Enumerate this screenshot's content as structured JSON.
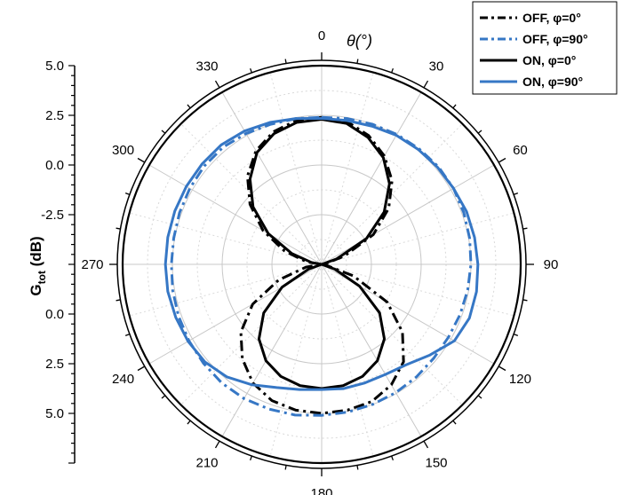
{
  "chart_data": {
    "type": "polar-line",
    "title": "θ(°)",
    "ylabel_main": "G",
    "ylabel_sub": "tot",
    "ylabel_unit": " (dB)",
    "radial_range": [
      -5.0,
      5.0
    ],
    "radial_tick_labels_top": [
      "5.0",
      "2.5",
      "0.0",
      "-2.5"
    ],
    "radial_tick_labels_bottom": [
      "0.0",
      "2.5",
      "5.0"
    ],
    "angular_ticks": [
      {
        "angle": 0,
        "label": "0"
      },
      {
        "angle": 30,
        "label": "30"
      },
      {
        "angle": 60,
        "label": "60"
      },
      {
        "angle": 90,
        "label": "90"
      },
      {
        "angle": 120,
        "label": "120"
      },
      {
        "angle": 150,
        "label": "150"
      },
      {
        "angle": 180,
        "label": "180"
      },
      {
        "angle": 210,
        "label": "210"
      },
      {
        "angle": 240,
        "label": "240"
      },
      {
        "angle": 270,
        "label": "270"
      },
      {
        "angle": 300,
        "label": "300"
      },
      {
        "angle": 330,
        "label": "330"
      }
    ],
    "grid": true,
    "legend_position": "top-right",
    "series": [
      {
        "name": "OFF, φ=0°",
        "color": "#000000",
        "style": "dashdot",
        "theta": [
          0,
          10,
          20,
          30,
          40,
          50,
          60,
          70,
          80,
          90,
          100,
          110,
          120,
          130,
          140,
          150,
          160,
          170,
          180,
          190,
          200,
          210,
          220,
          230,
          240,
          250,
          260,
          270,
          280,
          290,
          300,
          310,
          320,
          330,
          340,
          350,
          360
        ],
        "r": [
          2.4,
          2.3,
          1.9,
          1.3,
          0.5,
          -0.6,
          -2.0,
          -3.8,
          -4.8,
          -5.0,
          -4.8,
          -3.3,
          -1.2,
          0.3,
          1.4,
          2.0,
          2.35,
          2.45,
          2.5,
          2.45,
          2.3,
          1.9,
          1.2,
          0.3,
          -1.0,
          -2.7,
          -4.2,
          -5.0,
          -4.2,
          -3.0,
          -1.6,
          -0.3,
          0.8,
          1.6,
          2.1,
          2.35,
          2.4
        ]
      },
      {
        "name": "OFF, φ=90°",
        "color": "#3677c5",
        "style": "dashdot",
        "theta": [
          0,
          10,
          20,
          30,
          40,
          50,
          60,
          70,
          80,
          90,
          100,
          110,
          120,
          130,
          140,
          150,
          160,
          170,
          180,
          190,
          200,
          210,
          220,
          230,
          240,
          250,
          260,
          270,
          280,
          290,
          300,
          310,
          320,
          330,
          340,
          350,
          360
        ],
        "r": [
          2.4,
          2.45,
          2.5,
          2.55,
          2.6,
          2.65,
          2.65,
          2.6,
          2.55,
          2.5,
          2.45,
          2.4,
          2.35,
          2.35,
          2.4,
          2.45,
          2.5,
          2.55,
          2.6,
          2.7,
          2.75,
          2.8,
          2.8,
          2.75,
          2.7,
          2.65,
          2.6,
          2.55,
          2.55,
          2.6,
          2.65,
          2.7,
          2.7,
          2.6,
          2.5,
          2.45,
          2.4
        ]
      },
      {
        "name": "ON, φ=0°",
        "color": "#000000",
        "style": "solid",
        "theta": [
          0,
          10,
          20,
          30,
          40,
          50,
          60,
          70,
          80,
          90,
          100,
          110,
          120,
          130,
          140,
          150,
          160,
          170,
          180,
          190,
          200,
          210,
          220,
          230,
          240,
          250,
          260,
          270,
          280,
          290,
          300,
          310,
          320,
          330,
          340,
          350,
          360
        ],
        "r": [
          2.3,
          2.2,
          1.8,
          1.2,
          0.3,
          -0.9,
          -2.4,
          -4.2,
          -5.0,
          -5.0,
          -5.0,
          -4.3,
          -2.8,
          -1.2,
          -0.1,
          0.6,
          1.0,
          1.2,
          1.25,
          1.2,
          1.0,
          0.6,
          -0.1,
          -1.2,
          -2.7,
          -4.3,
          -5.0,
          -5.0,
          -4.5,
          -3.4,
          -1.9,
          -0.5,
          0.6,
          1.5,
          2.0,
          2.25,
          2.3
        ]
      },
      {
        "name": "ON, φ=90°",
        "color": "#3677c5",
        "style": "solid",
        "theta": [
          0,
          10,
          20,
          30,
          40,
          50,
          60,
          70,
          80,
          90,
          100,
          110,
          120,
          130,
          140,
          150,
          160,
          170,
          180,
          190,
          200,
          210,
          220,
          230,
          240,
          250,
          260,
          270,
          280,
          290,
          300,
          310,
          320,
          330,
          340,
          350,
          360
        ],
        "r": [
          2.35,
          2.35,
          2.4,
          2.5,
          2.55,
          2.6,
          2.65,
          2.75,
          2.8,
          2.85,
          2.9,
          2.9,
          2.7,
          2.1,
          1.6,
          1.4,
          1.35,
          1.35,
          1.3,
          1.4,
          1.6,
          2.0,
          2.4,
          2.65,
          2.75,
          2.8,
          2.85,
          2.85,
          2.85,
          2.85,
          2.85,
          2.85,
          2.85,
          2.75,
          2.6,
          2.45,
          2.35
        ]
      }
    ]
  }
}
